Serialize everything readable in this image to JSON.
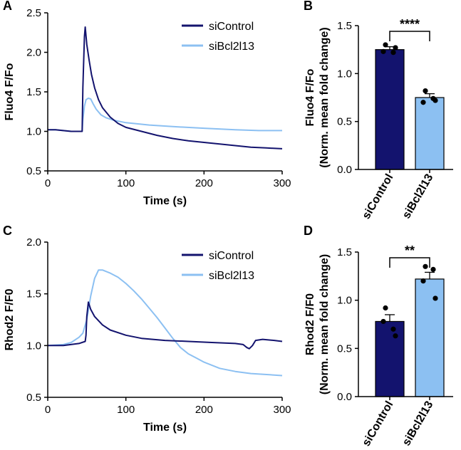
{
  "panels": {
    "A": "A",
    "B": "B",
    "C": "C",
    "D": "D"
  },
  "colors": {
    "siControl": "#13136e",
    "siBcl2l13": "#8cc0f2"
  },
  "chart_data": [
    {
      "panel": "A",
      "type": "line",
      "xlabel": "Time (s)",
      "ylabel": "Fluo4 F/Fo",
      "xlim": [
        0,
        300
      ],
      "ylim": [
        0.5,
        2.5
      ],
      "xticks": [
        "0",
        "100",
        "200",
        "300"
      ],
      "yticks": [
        "0.5",
        "1.0",
        "1.5",
        "2.0",
        "2.5"
      ],
      "legend": "top-right",
      "series": [
        {
          "name": "siControl",
          "color": "#13136e",
          "points": [
            [
              0,
              1.02
            ],
            [
              10,
              1.02
            ],
            [
              20,
              1.01
            ],
            [
              30,
              1.0
            ],
            [
              40,
              1.0
            ],
            [
              44,
              1.0
            ],
            [
              45,
              1.55
            ],
            [
              47,
              2.2
            ],
            [
              48,
              2.32
            ],
            [
              50,
              2.1
            ],
            [
              53,
              1.9
            ],
            [
              56,
              1.72
            ],
            [
              60,
              1.55
            ],
            [
              65,
              1.4
            ],
            [
              70,
              1.3
            ],
            [
              80,
              1.18
            ],
            [
              90,
              1.1
            ],
            [
              100,
              1.05
            ],
            [
              120,
              1.0
            ],
            [
              140,
              0.95
            ],
            [
              160,
              0.91
            ],
            [
              180,
              0.88
            ],
            [
              200,
              0.86
            ],
            [
              220,
              0.84
            ],
            [
              240,
              0.82
            ],
            [
              260,
              0.8
            ],
            [
              280,
              0.79
            ],
            [
              300,
              0.78
            ]
          ]
        },
        {
          "name": "siBcl2l13",
          "color": "#8cc0f2",
          "points": [
            [
              0,
              1.02
            ],
            [
              10,
              1.02
            ],
            [
              20,
              1.01
            ],
            [
              30,
              1.0
            ],
            [
              40,
              1.0
            ],
            [
              44,
              1.0
            ],
            [
              45,
              1.15
            ],
            [
              47,
              1.32
            ],
            [
              49,
              1.4
            ],
            [
              52,
              1.42
            ],
            [
              55,
              1.41
            ],
            [
              58,
              1.35
            ],
            [
              62,
              1.28
            ],
            [
              68,
              1.21
            ],
            [
              75,
              1.17
            ],
            [
              85,
              1.14
            ],
            [
              100,
              1.11
            ],
            [
              130,
              1.08
            ],
            [
              160,
              1.06
            ],
            [
              200,
              1.04
            ],
            [
              240,
              1.02
            ],
            [
              270,
              1.01
            ],
            [
              300,
              1.01
            ]
          ]
        }
      ]
    },
    {
      "panel": "B",
      "type": "bar",
      "xlabel": "",
      "ylabel": "Fluo4 F/Fo",
      "ylabel2": "(Norm. mean fold change)",
      "categories": [
        "siControl",
        "siBcl2l13"
      ],
      "values": [
        1.25,
        0.75
      ],
      "errors": [
        0.03,
        0.04
      ],
      "points": [
        [
          1.3,
          1.22,
          1.23,
          1.27
        ],
        [
          0.82,
          0.74,
          0.7,
          0.72
        ]
      ],
      "ylim": [
        0,
        1.5
      ],
      "yticks": [
        "0.0",
        "0.5",
        "1.0",
        "1.5"
      ],
      "significance": "****"
    },
    {
      "panel": "C",
      "type": "line",
      "xlabel": "Time (s)",
      "ylabel": "Rhod2 F/F0",
      "xlim": [
        0,
        300
      ],
      "ylim": [
        0.5,
        2.0
      ],
      "xticks": [
        "0",
        "100",
        "200",
        "300"
      ],
      "yticks": [
        "0.5",
        "1.0",
        "1.5",
        "2.0"
      ],
      "legend": "top-right",
      "series": [
        {
          "name": "siControl",
          "color": "#13136e",
          "points": [
            [
              0,
              1.0
            ],
            [
              20,
              1.0
            ],
            [
              40,
              1.02
            ],
            [
              48,
              1.04
            ],
            [
              49,
              1.1
            ],
            [
              50,
              1.28
            ],
            [
              52,
              1.42
            ],
            [
              55,
              1.35
            ],
            [
              60,
              1.28
            ],
            [
              70,
              1.2
            ],
            [
              80,
              1.15
            ],
            [
              100,
              1.1
            ],
            [
              120,
              1.07
            ],
            [
              150,
              1.05
            ],
            [
              180,
              1.04
            ],
            [
              210,
              1.03
            ],
            [
              240,
              1.02
            ],
            [
              250,
              1.01
            ],
            [
              255,
              0.98
            ],
            [
              258,
              0.97
            ],
            [
              262,
              1.0
            ],
            [
              266,
              1.05
            ],
            [
              275,
              1.06
            ],
            [
              290,
              1.05
            ],
            [
              300,
              1.04
            ]
          ]
        },
        {
          "name": "siBcl2l13",
          "color": "#8cc0f2",
          "points": [
            [
              0,
              1.0
            ],
            [
              20,
              1.01
            ],
            [
              30,
              1.03
            ],
            [
              40,
              1.08
            ],
            [
              45,
              1.12
            ],
            [
              50,
              1.25
            ],
            [
              55,
              1.48
            ],
            [
              60,
              1.65
            ],
            [
              65,
              1.73
            ],
            [
              70,
              1.73
            ],
            [
              80,
              1.7
            ],
            [
              90,
              1.66
            ],
            [
              100,
              1.6
            ],
            [
              110,
              1.53
            ],
            [
              120,
              1.45
            ],
            [
              130,
              1.36
            ],
            [
              140,
              1.27
            ],
            [
              150,
              1.17
            ],
            [
              160,
              1.07
            ],
            [
              170,
              0.98
            ],
            [
              180,
              0.92
            ],
            [
              190,
              0.88
            ],
            [
              200,
              0.84
            ],
            [
              220,
              0.78
            ],
            [
              240,
              0.75
            ],
            [
              260,
              0.73
            ],
            [
              280,
              0.72
            ],
            [
              300,
              0.71
            ]
          ]
        }
      ]
    },
    {
      "panel": "D",
      "type": "bar",
      "xlabel": "",
      "ylabel": "Rhod2 F/F0",
      "ylabel2": "(Norm. mean fold change)",
      "categories": [
        "siControl",
        "siBcl2l13"
      ],
      "values": [
        0.78,
        1.22
      ],
      "errors": [
        0.07,
        0.07
      ],
      "points": [
        [
          0.92,
          0.7,
          0.78,
          0.63
        ],
        [
          1.35,
          1.32,
          1.2,
          1.02
        ]
      ],
      "ylim": [
        0,
        1.5
      ],
      "yticks": [
        "0.0",
        "0.5",
        "1.0",
        "1.5"
      ],
      "significance": "**"
    }
  ]
}
